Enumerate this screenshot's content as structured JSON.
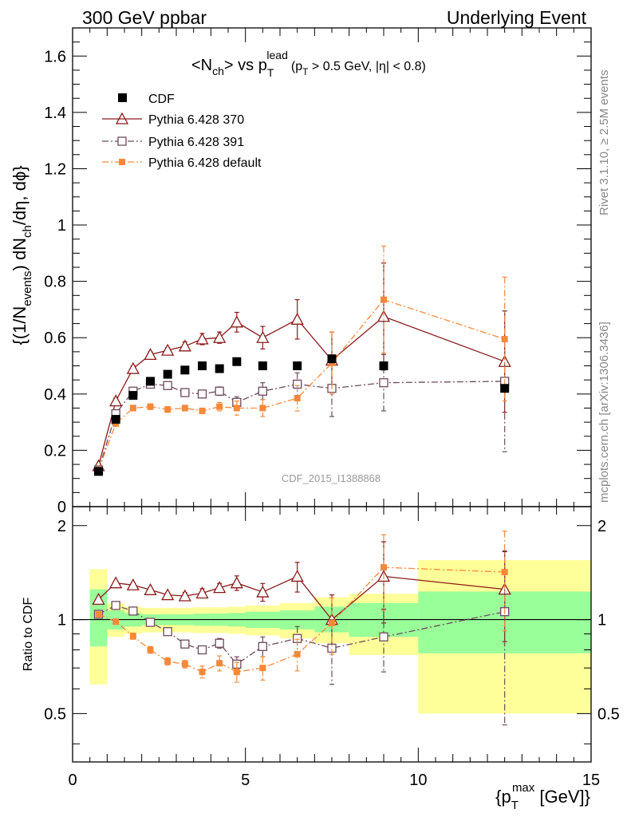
{
  "header": {
    "left": "300 GeV ppbar",
    "right": "Underlying Event"
  },
  "title": {
    "main": "<N",
    "main_sub": "ch",
    "vs": "> vs p",
    "vs_sub": "T",
    "vs_sup": "lead",
    "cut_open": "(p",
    "cut_sub": "T",
    "cut_rest": " > 0.5 GeV, |η| < 0.8)"
  },
  "ylabel_top": {
    "a": "{(1/N",
    "a_sub": "events",
    "b": ") dN",
    "b_sub": "ch",
    "c": "/dη, dϕ}"
  },
  "ylabel_bottom": "Ratio to CDF",
  "xlabel": {
    "open": "{p",
    "sub": "T",
    "sup": "max",
    "rest": " [GeV]}"
  },
  "side_labels": {
    "rivet": "Rivet 3.1.10, ≥ 2.5M events",
    "mcplots": "mcplots.cern.ch [arXiv:1306.3436]"
  },
  "watermark": "CDF_2015_I1388868",
  "legend": [
    {
      "label": "CDF"
    },
    {
      "label": "Pythia 6.428 370"
    },
    {
      "label": "Pythia 6.428 391"
    },
    {
      "label": "Pythia 6.428 default"
    }
  ],
  "colors": {
    "cdf": "#000000",
    "p370": "#8b1a1a",
    "p391": "#6e4a5c",
    "pdef": "#f5893a",
    "band_inner": "#99ff99",
    "band_outer": "#ffff99"
  },
  "chart_data": {
    "type": "scatter",
    "x": [
      0.75,
      1.25,
      1.75,
      2.25,
      2.75,
      3.25,
      3.75,
      4.25,
      4.75,
      5.5,
      6.5,
      7.5,
      9.0,
      12.5
    ],
    "xlim": [
      0,
      15
    ],
    "x_ticks": [
      0,
      5,
      10,
      15
    ],
    "top_panel": {
      "ylim": [
        0,
        1.7
      ],
      "y_ticks": [
        0,
        0.2,
        0.4,
        0.6,
        0.8,
        1.0,
        1.2,
        1.4,
        1.6
      ],
      "y_tick_labels": [
        "0",
        "0.2",
        "0.4",
        "0.6",
        "0.8",
        "1",
        "1.2",
        "1.4",
        "1.6"
      ],
      "series": [
        {
          "name": "CDF",
          "values": [
            0.125,
            0.31,
            0.395,
            0.445,
            0.47,
            0.485,
            0.5,
            0.49,
            0.515,
            0.5,
            0.5,
            0.525,
            0.5,
            0.42
          ],
          "errors": [
            0,
            0,
            0,
            0,
            0,
            0,
            0,
            0,
            0,
            0,
            0,
            0,
            0,
            0
          ]
        },
        {
          "name": "Pythia 6.428 370",
          "values": [
            0.145,
            0.375,
            0.49,
            0.54,
            0.555,
            0.57,
            0.595,
            0.6,
            0.655,
            0.6,
            0.665,
            0.52,
            0.675,
            0.515
          ],
          "errors": [
            0.005,
            0.01,
            0.01,
            0.01,
            0.01,
            0.015,
            0.02,
            0.02,
            0.035,
            0.04,
            0.07,
            0.1,
            0.19,
            0.18
          ]
        },
        {
          "name": "Pythia 6.428 391",
          "values": [
            0.13,
            0.33,
            0.41,
            0.435,
            0.43,
            0.405,
            0.4,
            0.41,
            0.37,
            0.41,
            0.435,
            0.42,
            0.44,
            0.445
          ],
          "errors": [
            0.005,
            0.01,
            0.01,
            0.01,
            0.01,
            0.01,
            0.01,
            0.015,
            0.02,
            0.03,
            0.04,
            0.1,
            0.1,
            0.25
          ]
        },
        {
          "name": "Pythia 6.428 default",
          "values": [
            0.13,
            0.295,
            0.35,
            0.355,
            0.345,
            0.35,
            0.34,
            0.355,
            0.35,
            0.35,
            0.385,
            0.51,
            0.735,
            0.595
          ],
          "errors": [
            0.005,
            0.01,
            0.01,
            0.01,
            0.01,
            0.01,
            0.01,
            0.015,
            0.025,
            0.03,
            0.045,
            0.11,
            0.19,
            0.22
          ]
        }
      ]
    },
    "ratio_panel": {
      "ylabel": "Ratio to CDF",
      "ylim": [
        0.35,
        2.3
      ],
      "y_ticks": [
        0.5,
        1,
        2
      ],
      "y_tick_labels": [
        "0.5",
        "1",
        "2"
      ],
      "series": [
        {
          "name": "Pythia 6.428 370",
          "values": [
            1.16,
            1.31,
            1.29,
            1.245,
            1.2,
            1.19,
            1.215,
            1.265,
            1.31,
            1.225,
            1.375,
            1.0,
            1.375,
            1.25
          ],
          "errors": [
            0.02,
            0.02,
            0.02,
            0.02,
            0.02,
            0.03,
            0.04,
            0.04,
            0.07,
            0.08,
            0.15,
            0.2,
            0.4,
            0.4
          ]
        },
        {
          "name": "Pythia 6.428 391",
          "values": [
            1.04,
            1.11,
            1.065,
            0.98,
            0.915,
            0.835,
            0.8,
            0.84,
            0.72,
            0.82,
            0.87,
            0.81,
            0.88,
            1.06
          ],
          "errors": [
            0.02,
            0.02,
            0.02,
            0.02,
            0.02,
            0.02,
            0.02,
            0.03,
            0.04,
            0.06,
            0.08,
            0.19,
            0.2,
            0.6
          ]
        },
        {
          "name": "Pythia 6.428 default",
          "values": [
            1.04,
            0.985,
            0.885,
            0.8,
            0.735,
            0.72,
            0.68,
            0.725,
            0.68,
            0.7,
            0.775,
            0.975,
            1.47,
            1.42
          ],
          "errors": [
            0.02,
            0.02,
            0.02,
            0.02,
            0.02,
            0.02,
            0.03,
            0.04,
            0.05,
            0.06,
            0.09,
            0.2,
            0.4,
            0.5
          ]
        }
      ],
      "bands": [
        {
          "x0": 0.5,
          "x1": 1.0,
          "inner": [
            0.82,
            1.25
          ],
          "outer": [
            0.62,
            1.45
          ]
        },
        {
          "x0": 1.0,
          "x1": 1.5,
          "inner": [
            0.93,
            1.07
          ],
          "outer": [
            0.88,
            1.13
          ]
        },
        {
          "x0": 1.5,
          "x1": 2.0,
          "inner": [
            0.95,
            1.05
          ],
          "outer": [
            0.9,
            1.1
          ]
        },
        {
          "x0": 2.0,
          "x1": 2.5,
          "inner": [
            0.96,
            1.04
          ],
          "outer": [
            0.91,
            1.09
          ]
        },
        {
          "x0": 2.5,
          "x1": 3.0,
          "inner": [
            0.96,
            1.04
          ],
          "outer": [
            0.91,
            1.09
          ]
        },
        {
          "x0": 3.0,
          "x1": 3.5,
          "inner": [
            0.96,
            1.04
          ],
          "outer": [
            0.91,
            1.09
          ]
        },
        {
          "x0": 3.5,
          "x1": 4.0,
          "inner": [
            0.955,
            1.045
          ],
          "outer": [
            0.905,
            1.095
          ]
        },
        {
          "x0": 4.0,
          "x1": 4.5,
          "inner": [
            0.955,
            1.045
          ],
          "outer": [
            0.905,
            1.095
          ]
        },
        {
          "x0": 4.5,
          "x1": 5.0,
          "inner": [
            0.95,
            1.05
          ],
          "outer": [
            0.9,
            1.1
          ]
        },
        {
          "x0": 5.0,
          "x1": 6.0,
          "inner": [
            0.94,
            1.06
          ],
          "outer": [
            0.89,
            1.11
          ]
        },
        {
          "x0": 6.0,
          "x1": 7.0,
          "inner": [
            0.93,
            1.07
          ],
          "outer": [
            0.87,
            1.13
          ]
        },
        {
          "x0": 7.0,
          "x1": 8.0,
          "inner": [
            0.91,
            1.1
          ],
          "outer": [
            0.84,
            1.18
          ]
        },
        {
          "x0": 8.0,
          "x1": 10.0,
          "inner": [
            0.88,
            1.13
          ],
          "outer": [
            0.77,
            1.21
          ]
        },
        {
          "x0": 10.0,
          "x1": 15.0,
          "inner": [
            0.78,
            1.23
          ],
          "outer": [
            0.5,
            1.55
          ]
        }
      ]
    }
  }
}
